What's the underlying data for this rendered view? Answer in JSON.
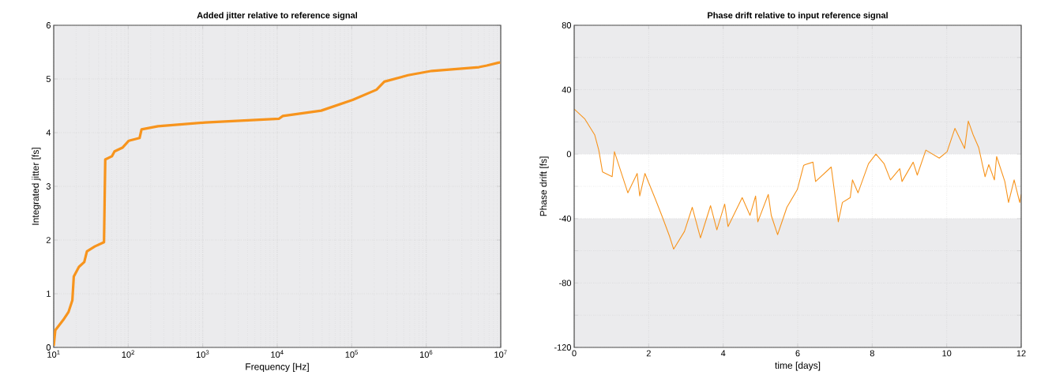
{
  "chart_data": [
    {
      "type": "line",
      "title": "Added jitter relative to reference signal",
      "xlabel": "Frequency [Hz]",
      "ylabel": "Integrated jitter [fs]",
      "log": "x",
      "grid": true,
      "xlim": [
        10,
        10000000
      ],
      "ylim": [
        0,
        6
      ],
      "xticks": [
        {
          "value": 10,
          "label": "10$^{1}$"
        },
        {
          "value": 100,
          "label": "10$^{2}$"
        },
        {
          "value": 1000,
          "label": "10$^{3}$"
        },
        {
          "value": 10000,
          "label": "10$^{4}$"
        },
        {
          "value": 100000,
          "label": "10$^{5}$"
        },
        {
          "value": 1000000,
          "label": "10$^{6}$"
        },
        {
          "value": 10000000,
          "label": "10$^{7}$"
        }
      ],
      "yticks": [
        0,
        1,
        2,
        3,
        4,
        5,
        6
      ],
      "series": [
        {
          "color": "#f7941d",
          "x": [
            10,
            10.5,
            13.4,
            15.8,
            17.8,
            18.6,
            21.8,
            25.7,
            27.9,
            35.6,
            47.3,
            49.2,
            60.4,
            65.5,
            83.6,
            102,
            142,
            151,
            251,
            1084,
            10600,
            11900,
            38900,
            103000,
            215000,
            274000,
            570000,
            1190000,
            5100000,
            6500000,
            9800000
          ],
          "values": [
            0.03,
            0.32,
            0.51,
            0.66,
            0.88,
            1.32,
            1.5,
            1.59,
            1.79,
            1.88,
            1.96,
            3.5,
            3.56,
            3.65,
            3.72,
            3.85,
            3.9,
            4.06,
            4.12,
            4.19,
            4.26,
            4.31,
            4.41,
            4.61,
            4.8,
            4.95,
            5.07,
            5.15,
            5.22,
            5.25,
            5.31
          ]
        }
      ]
    },
    {
      "type": "line",
      "title": "Phase drift relative to input reference signal",
      "xlabel": "time [days]",
      "ylabel": "Phase drift [fs]",
      "grid": true,
      "xlim": [
        0,
        12
      ],
      "ylim": [
        -120,
        80
      ],
      "xticks": [
        0,
        2,
        4,
        6,
        8,
        10,
        12
      ],
      "yticks": [
        -120,
        {
          "value": -100,
          "label": null
        },
        -80,
        {
          "value": -60,
          "label": null
        },
        -40,
        {
          "value": -20,
          "label": null
        },
        0,
        {
          "value": 20,
          "label": null
        },
        40,
        {
          "value": 60,
          "label": null
        },
        80
      ],
      "bands": [
        {
          "axis": "y",
          "from": -40,
          "to": 0,
          "color": "#ffffff"
        }
      ],
      "series": [
        {
          "color": "#f7941d",
          "x": [
            0,
            0.28,
            0.55,
            0.66,
            0.76,
            1.02,
            1.08,
            1.44,
            1.69,
            1.76,
            1.9,
            2.18,
            2.35,
            2.56,
            2.67,
            2.96,
            3.17,
            3.39,
            3.66,
            3.83,
            4.04,
            4.13,
            4.51,
            4.72,
            4.87,
            4.93,
            5.21,
            5.29,
            5.46,
            5.71,
            5.99,
            6.16,
            6.2,
            6.41,
            6.48,
            6.9,
            6.98,
            7.09,
            7.2,
            7.41,
            7.47,
            7.62,
            7.9,
            8.1,
            8.32,
            8.49,
            8.74,
            8.8,
            9.1,
            9.21,
            9.44,
            9.8,
            10.01,
            10.22,
            10.48,
            10.58,
            10.71,
            10.86,
            11.03,
            11.13,
            11.28,
            11.34,
            11.56,
            11.66,
            11.81,
            11.96,
            12
          ],
          "values": [
            28,
            22,
            12,
            2.5,
            -11,
            -14,
            1.5,
            -24,
            -12,
            -26,
            -12,
            -28,
            -38,
            -51,
            -59,
            -48,
            -33,
            -52,
            -32,
            -47,
            -31,
            -45,
            -27,
            -38,
            -26,
            -42,
            -25,
            -38,
            -50,
            -33,
            -22,
            -7,
            -6.5,
            -5,
            -17,
            -8,
            -22,
            -42,
            -30,
            -27,
            -16,
            -24,
            -6,
            0,
            -6,
            -16,
            -9,
            -17,
            -5,
            -13,
            2.5,
            -2.5,
            1.5,
            16,
            3.5,
            20.5,
            12,
            4,
            -14,
            -6.5,
            -16,
            -1.5,
            -17,
            -30,
            -16,
            -30,
            -25
          ]
        }
      ]
    }
  ]
}
